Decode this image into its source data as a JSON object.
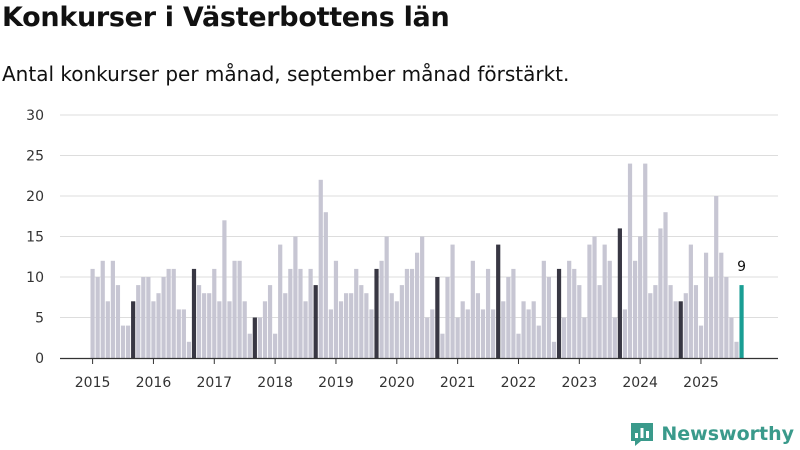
{
  "chart_data": {
    "type": "bar",
    "title": "Konkurser i Västerbottens län",
    "subtitle": "Antal konkurser per månad, september månad förstärkt.",
    "xlabel": "",
    "ylabel": "",
    "ylim": [
      0,
      30
    ],
    "yticks": [
      "0",
      "5",
      "10",
      "15",
      "20",
      "25",
      "30"
    ],
    "year_labels": [
      "2015",
      "2016",
      "2017",
      "2018",
      "2019",
      "2020",
      "2021",
      "2022",
      "2023",
      "2024",
      "2025"
    ],
    "start": "2015-01",
    "values": [
      11,
      10,
      12,
      7,
      12,
      9,
      4,
      4,
      7,
      9,
      10,
      10,
      7,
      8,
      10,
      11,
      11,
      6,
      6,
      2,
      11,
      9,
      8,
      8,
      11,
      7,
      17,
      7,
      12,
      12,
      7,
      3,
      5,
      5,
      7,
      9,
      3,
      14,
      8,
      11,
      15,
      11,
      7,
      11,
      9,
      22,
      18,
      6,
      12,
      7,
      8,
      8,
      11,
      9,
      8,
      6,
      11,
      12,
      15,
      8,
      7,
      9,
      11,
      11,
      13,
      15,
      5,
      6,
      10,
      3,
      10,
      14,
      5,
      7,
      6,
      12,
      8,
      6,
      11,
      6,
      14,
      7,
      10,
      11,
      3,
      7,
      6,
      7,
      4,
      12,
      10,
      2,
      11,
      5,
      12,
      11,
      9,
      5,
      14,
      15,
      9,
      14,
      12,
      5,
      16,
      6,
      24,
      12,
      15,
      24,
      8,
      9,
      16,
      18,
      9,
      7,
      7,
      8,
      14,
      9,
      4,
      13,
      10,
      20,
      13,
      10,
      5,
      2,
      9
    ],
    "highlight_month": 9,
    "data_label": "9",
    "colors": {
      "normal": "#c7c6d3",
      "september": "#383743",
      "latest": "#1a9e94",
      "grid": "#dddddd"
    }
  },
  "brand": {
    "name": "Newsworthy",
    "icon": "newsworthy-logo-icon",
    "color": "#3a9a8b"
  }
}
